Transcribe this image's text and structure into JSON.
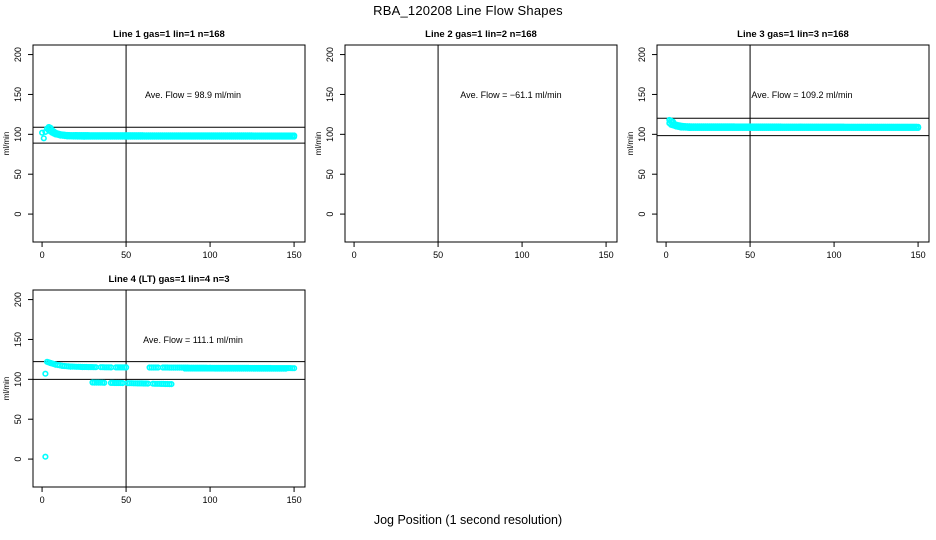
{
  "chart_data": {
    "type": "scatter",
    "title": "RBA_120208  Line Flow Shapes",
    "xlabel": "Jog Position (1 second resolution)",
    "ylabel": "ml/min",
    "xlim": [
      -5.4,
      156.5
    ],
    "ylim": [
      -35,
      212
    ],
    "xticks": [
      0,
      50,
      100,
      150
    ],
    "yticks": [
      0,
      50,
      100,
      150,
      200
    ],
    "grid": false,
    "marker": "open-circle",
    "marker_color": "#00FFFF",
    "axis_color": "#000000",
    "vline_x": 50,
    "panels": [
      {
        "title": "Line 1 gas=1 lin=1 n=168",
        "annotation": "Ave. Flow =  98.9  ml/min",
        "ave_flow_ml_min": 98.9,
        "n": 168,
        "ref_lines": [
          108.8,
          89.0
        ],
        "traces": [
          [
            [
              2,
              103
            ],
            [
              3,
              107
            ],
            [
              4,
              109
            ],
            [
              5,
              108
            ],
            [
              6,
              105
            ],
            [
              8,
              102
            ],
            [
              10,
              100.5
            ],
            [
              13,
              99.5
            ],
            [
              16,
              99
            ],
            [
              20,
              99
            ],
            [
              150,
              98.5
            ]
          ],
          [
            [
              4,
              105
            ],
            [
              6,
              102
            ],
            [
              8,
              100
            ],
            [
              11,
              98.5
            ],
            [
              15,
              97.5
            ],
            [
              25,
              97
            ],
            [
              150,
              97
            ]
          ],
          [
            [
              18,
              98
            ],
            [
              150,
              98
            ]
          ]
        ],
        "singles": [
          [
            0,
            102
          ],
          [
            1,
            95
          ]
        ]
      },
      {
        "title": "Line 2 gas=1 lin=2 n=168",
        "annotation": "Ave. Flow =  −61.1  ml/min",
        "ave_flow_ml_min": -61.1,
        "n": 168,
        "ref_lines": [],
        "traces": [],
        "singles": []
      },
      {
        "title": "Line 3 gas=1 lin=3 n=168",
        "annotation": "Ave. Flow =  109.2  ml/min",
        "ave_flow_ml_min": 109.2,
        "n": 168,
        "ref_lines": [
          120.1,
          98.3
        ],
        "traces": [
          [
            [
              2,
              114
            ],
            [
              3,
              117
            ],
            [
              4,
              116
            ],
            [
              5,
              113
            ],
            [
              7,
              111.5
            ],
            [
              10,
              110.5
            ],
            [
              14,
              110
            ],
            [
              80,
              109.7
            ],
            [
              150,
              109.5
            ]
          ],
          [
            [
              3,
              112
            ],
            [
              6,
              110
            ],
            [
              9,
              108.5
            ],
            [
              14,
              108
            ],
            [
              150,
              108
            ]
          ],
          [
            [
              20,
              109
            ],
            [
              150,
              108.8
            ]
          ]
        ],
        "singles": [
          [
            2,
            118
          ]
        ]
      },
      {
        "title": "Line 4 (LT) gas=1 lin=4 n=3",
        "annotation": "Ave. Flow =  111.1  ml/min",
        "ave_flow_ml_min": 111.1,
        "n": 3,
        "ref_lines": [
          122.2,
          100.0
        ],
        "traces": [
          [
            [
              3,
              122
            ],
            [
              5,
              120.5
            ],
            [
              8,
              118.5
            ],
            [
              12,
              117
            ],
            [
              17,
              116
            ],
            [
              24,
              115.5
            ],
            [
              32,
              115.2
            ]
          ],
          [
            [
              35,
              115.2
            ],
            [
              41,
              115
            ]
          ],
          [
            [
              44,
              115
            ],
            [
              50,
              114.9
            ]
          ],
          [
            [
              64,
              114.8
            ],
            [
              69,
              114.8
            ]
          ],
          [
            [
              72,
              114.8
            ],
            [
              100,
              114.5
            ],
            [
              150,
              114
            ]
          ],
          [
            [
              85,
              113.6
            ],
            [
              145,
              113.3
            ]
          ],
          [
            [
              30,
              96
            ],
            [
              37,
              95.7
            ]
          ],
          [
            [
              41,
              95.5
            ],
            [
              48,
              95.3
            ]
          ],
          [
            [
              51,
              95.2
            ],
            [
              63,
              94.7
            ]
          ],
          [
            [
              66,
              94.5
            ],
            [
              77,
              94
            ]
          ]
        ],
        "singles": [
          [
            2,
            107
          ],
          [
            2,
            3
          ]
        ]
      }
    ]
  }
}
